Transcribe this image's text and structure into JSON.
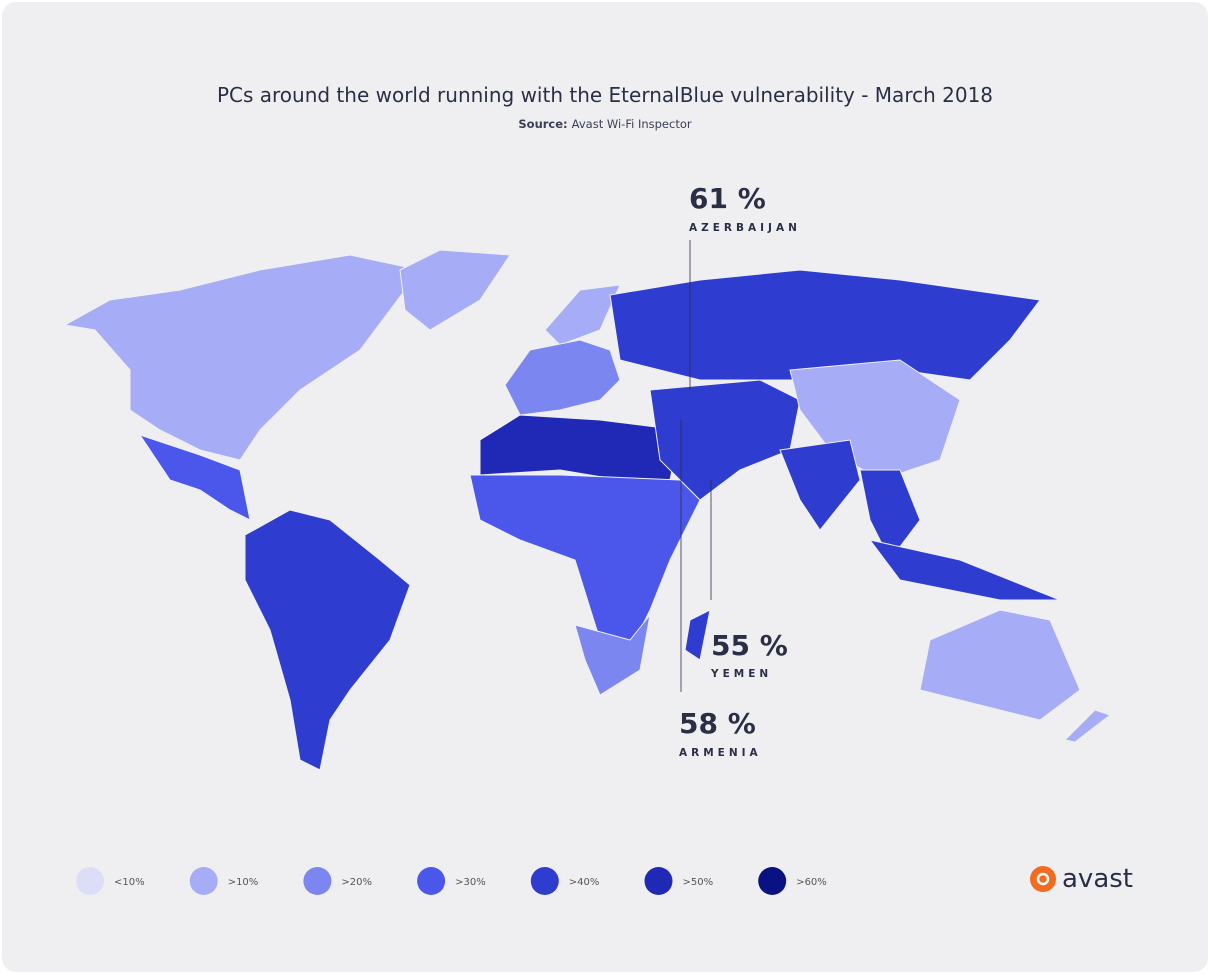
{
  "header": {
    "title": "PCs around the world running with the EternalBlue vulnerability - March 2018",
    "source_label": "Source:",
    "source": "Avast Wi-Fi Inspector"
  },
  "callouts": [
    {
      "value": "61 %",
      "country": "AZERBAIJAN"
    },
    {
      "value": "55 %",
      "country": "YEMEN"
    },
    {
      "value": "58 %",
      "country": "ARMENIA"
    }
  ],
  "legend": [
    {
      "label": "<10%",
      "color": "#dcdef8"
    },
    {
      "label": ">10%",
      "color": "#a6acf5"
    },
    {
      "label": ">20%",
      "color": "#7b86f0"
    },
    {
      "label": ">30%",
      "color": "#4a57ea"
    },
    {
      "label": ">40%",
      "color": "#2e3dcf"
    },
    {
      "label": ">50%",
      "color": "#1f29b5"
    },
    {
      "label": ">60%",
      "color": "#0a1283"
    }
  ],
  "logo": "avast"
}
